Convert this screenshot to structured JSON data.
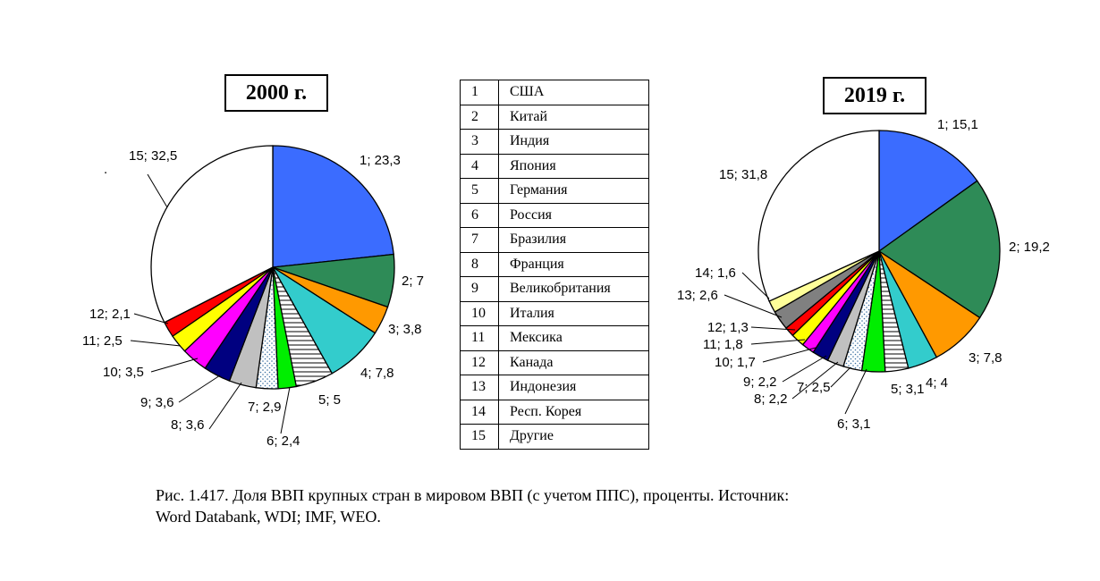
{
  "chart_data": [
    {
      "type": "pie",
      "title": "2000 г.",
      "labels": [
        "1; 23,3",
        "2; 7",
        "3; 3,8",
        "4; 7,8",
        "5; 5",
        "6; 2,4",
        "7; 2,9",
        "8; 3,6",
        "9; 3,6",
        "10; 3,5",
        "11; 2,5",
        "12; 2,1",
        "15; 32,5"
      ],
      "slices": [
        {
          "id": 1,
          "value": 23.3,
          "color": "#3b6cff",
          "pattern": "solid"
        },
        {
          "id": 2,
          "value": 7,
          "color": "#2e8b57",
          "pattern": "solid"
        },
        {
          "id": 3,
          "value": 3.8,
          "color": "#ff9900",
          "pattern": "solid"
        },
        {
          "id": 4,
          "value": 7.8,
          "color": "#33cccc",
          "pattern": "solid"
        },
        {
          "id": 5,
          "value": 5,
          "color": "#ffffff",
          "pattern": "hlines"
        },
        {
          "id": 6,
          "value": 2.4,
          "color": "#00ee00",
          "pattern": "solid"
        },
        {
          "id": 7,
          "value": 2.9,
          "color": "#ffffff",
          "pattern": "dots"
        },
        {
          "id": 8,
          "value": 3.6,
          "color": "#c0c0c0",
          "pattern": "solid"
        },
        {
          "id": 9,
          "value": 3.6,
          "color": "#000080",
          "pattern": "solid"
        },
        {
          "id": 10,
          "value": 3.5,
          "color": "#ff00ff",
          "pattern": "solid"
        },
        {
          "id": 11,
          "value": 2.5,
          "color": "#ffff00",
          "pattern": "solid"
        },
        {
          "id": 12,
          "value": 2.1,
          "color": "#ff0000",
          "pattern": "solid"
        },
        {
          "id": 15,
          "value": 32.5,
          "color": "#ffffff",
          "pattern": "solid"
        }
      ]
    },
    {
      "type": "pie",
      "title": "2019 г.",
      "labels": [
        "1; 15,1",
        "2; 19,2",
        "3; 7,8",
        "4; 4",
        "5; 3,1",
        "6; 3,1",
        "7; 2,5",
        "8; 2,2",
        "9; 2,2",
        "10; 1,7",
        "11; 1,8",
        "12; 1,3",
        "13; 2,6",
        "14; 1,6",
        "15; 31,8"
      ],
      "slices": [
        {
          "id": 1,
          "value": 15.1,
          "color": "#3b6cff",
          "pattern": "solid"
        },
        {
          "id": 2,
          "value": 19.2,
          "color": "#2e8b57",
          "pattern": "solid"
        },
        {
          "id": 3,
          "value": 7.8,
          "color": "#ff9900",
          "pattern": "solid"
        },
        {
          "id": 4,
          "value": 4,
          "color": "#33cccc",
          "pattern": "solid"
        },
        {
          "id": 5,
          "value": 3.1,
          "color": "#ffffff",
          "pattern": "hlines"
        },
        {
          "id": 6,
          "value": 3.1,
          "color": "#00ee00",
          "pattern": "solid"
        },
        {
          "id": 7,
          "value": 2.5,
          "color": "#ffffff",
          "pattern": "dots"
        },
        {
          "id": 8,
          "value": 2.2,
          "color": "#c0c0c0",
          "pattern": "solid"
        },
        {
          "id": 9,
          "value": 2.2,
          "color": "#000080",
          "pattern": "solid"
        },
        {
          "id": 10,
          "value": 1.7,
          "color": "#ff00ff",
          "pattern": "solid"
        },
        {
          "id": 11,
          "value": 1.8,
          "color": "#ffff00",
          "pattern": "solid"
        },
        {
          "id": 12,
          "value": 1.3,
          "color": "#ff0000",
          "pattern": "solid"
        },
        {
          "id": 13,
          "value": 2.6,
          "color": "#808080",
          "pattern": "solid"
        },
        {
          "id": 14,
          "value": 1.6,
          "color": "#ffff99",
          "pattern": "solid"
        },
        {
          "id": 15,
          "value": 31.8,
          "color": "#ffffff",
          "pattern": "solid"
        }
      ]
    }
  ],
  "legend": [
    {
      "num": "1",
      "name": "США"
    },
    {
      "num": "2",
      "name": "Китай"
    },
    {
      "num": "3",
      "name": "Индия"
    },
    {
      "num": "4",
      "name": "Япония"
    },
    {
      "num": "5",
      "name": "Германия"
    },
    {
      "num": "6",
      "name": "Россия"
    },
    {
      "num": "7",
      "name": "Бразилия"
    },
    {
      "num": "8",
      "name": "Франция"
    },
    {
      "num": "9",
      "name": "Великобритания"
    },
    {
      "num": "10",
      "name": "Италия"
    },
    {
      "num": "11",
      "name": "Мексика"
    },
    {
      "num": "12",
      "name": "Канада"
    },
    {
      "num": "13",
      "name": "Индонезия"
    },
    {
      "num": "14",
      "name": "Респ. Корея"
    },
    {
      "num": "15",
      "name": "Другие"
    }
  ],
  "stray_mark": ".",
  "caption": {
    "line1": "Рис. 1.417. Доля ВВП крупных стран в мировом ВВП (с учетом ППС), проценты. Источник:",
    "line2": "Word Databank, WDI; IMF, WEO."
  }
}
